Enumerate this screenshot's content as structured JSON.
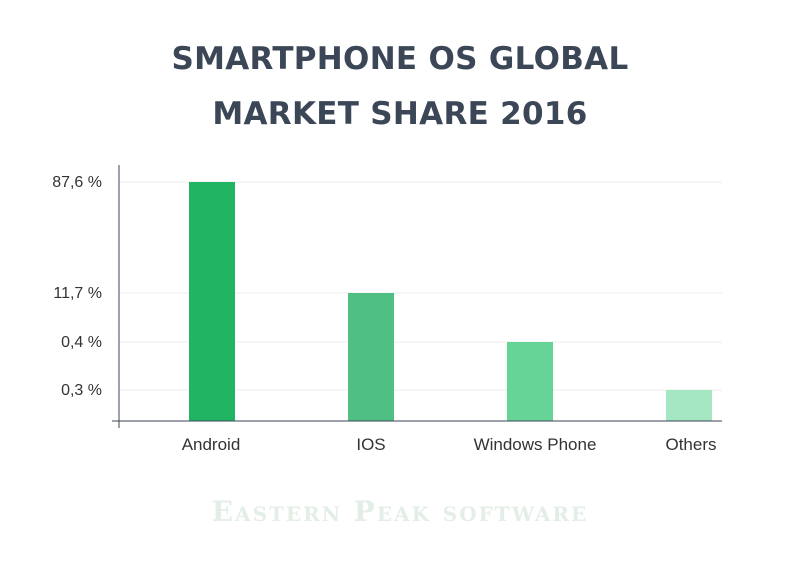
{
  "title_line1": "SMARTPHONE OS GLOBAL",
  "title_line2": "MARKET SHARE 2016",
  "watermark": "Eastern Peak software",
  "chart_data": {
    "type": "bar",
    "categories": [
      "Android",
      "IOS",
      "Windows Phone",
      "Others"
    ],
    "values": [
      87.6,
      11.7,
      0.4,
      0.3
    ],
    "tick_labels": [
      "87,6 %",
      "11,7 %",
      "0,4 %",
      "0,3 %"
    ],
    "colors": [
      "#1fb563",
      "#4fbf84",
      "#66d497",
      "#a4e7c2"
    ],
    "axis_color": "#3b4656",
    "grid": true,
    "legend": "none"
  }
}
